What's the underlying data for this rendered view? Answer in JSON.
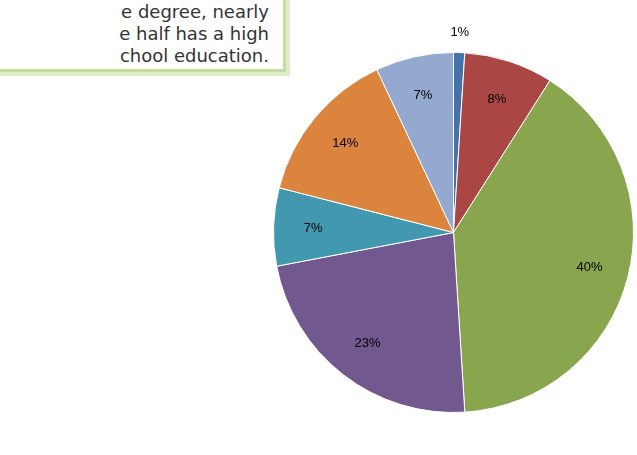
{
  "chart_data": {
    "type": "pie",
    "annotations": [
      "e degree, nearly",
      "e half has a high",
      "chool education."
    ],
    "values": [
      1,
      8,
      40,
      23,
      7,
      14,
      7
    ],
    "value_labels": [
      "1%",
      "8%",
      "40%",
      "23%",
      "7%",
      "14%",
      "7%"
    ],
    "colors": [
      "#4572a7",
      "#aa4643",
      "#89a54e",
      "#71588f",
      "#4198af",
      "#db843d",
      "#93a9cf"
    ],
    "data_labels": true
  }
}
